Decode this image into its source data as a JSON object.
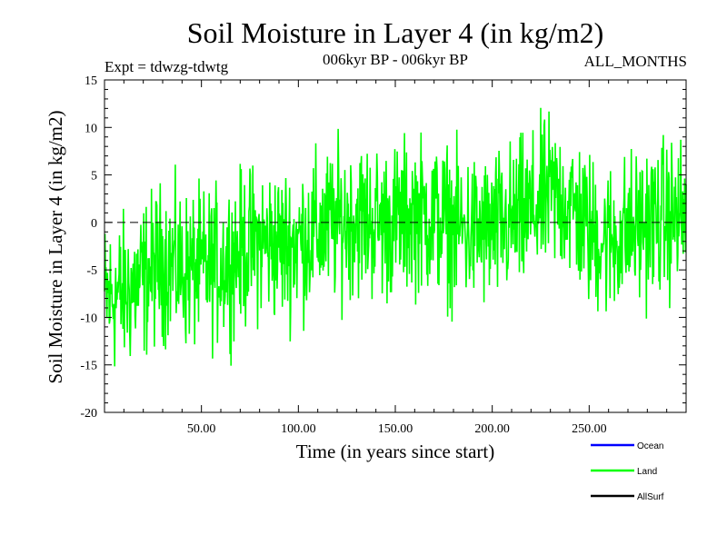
{
  "chart_data": {
    "type": "line",
    "title": "Soil Moisture in Layer 4 (in kg/m2)",
    "subtitle_left": "Expt = tdwzg-tdwtg",
    "subtitle_center": "006kyr BP - 006kyr BP",
    "subtitle_right": "ALL_MONTHS",
    "xlabel": "Time (in years since start)",
    "ylabel": "Soil Moisture in Layer 4 (in kg/m2)",
    "xlim": [
      0,
      300
    ],
    "ylim": [
      -20,
      15
    ],
    "x_ticks": [
      50,
      100,
      150,
      200,
      250
    ],
    "x_tick_labels": [
      "50.00",
      "100.00",
      "150.00",
      "200.00",
      "250.00"
    ],
    "y_ticks": [
      -20,
      -15,
      -10,
      -5,
      0,
      5,
      10,
      15
    ],
    "y_tick_labels": [
      "-20",
      "-15",
      "-10",
      "-5",
      "0",
      "5",
      "10",
      "15"
    ],
    "zero_line": 0,
    "series": [
      {
        "name": "Land",
        "color": "#00ff00",
        "x_start": 0,
        "x_step": 0.25,
        "trend_x": [
          0,
          10,
          20,
          30,
          40,
          50,
          60,
          70,
          80,
          90,
          100,
          110,
          120,
          130,
          140,
          150,
          160,
          170,
          180,
          190,
          200,
          210,
          220,
          230,
          240,
          250,
          260,
          270,
          280,
          290,
          300
        ],
        "trend_y": [
          -8,
          -7.5,
          -6,
          -4,
          -5,
          -5,
          -4.5,
          -3,
          -2,
          -2.5,
          -2,
          -1,
          0,
          0.5,
          0,
          0,
          1,
          0.5,
          -0.5,
          -1,
          -1,
          0,
          1,
          3,
          2,
          -1,
          -2,
          -1,
          0,
          0.5,
          0.5
        ],
        "amplitude": 4,
        "range": [
          -15.5,
          12.5
        ]
      }
    ],
    "legend": {
      "placement": "bottom-right",
      "entries": [
        {
          "label": "Ocean",
          "color": "#0000ff"
        },
        {
          "label": "Land",
          "color": "#00ff00"
        },
        {
          "label": "AllSurf",
          "color": "#000000"
        }
      ]
    }
  }
}
